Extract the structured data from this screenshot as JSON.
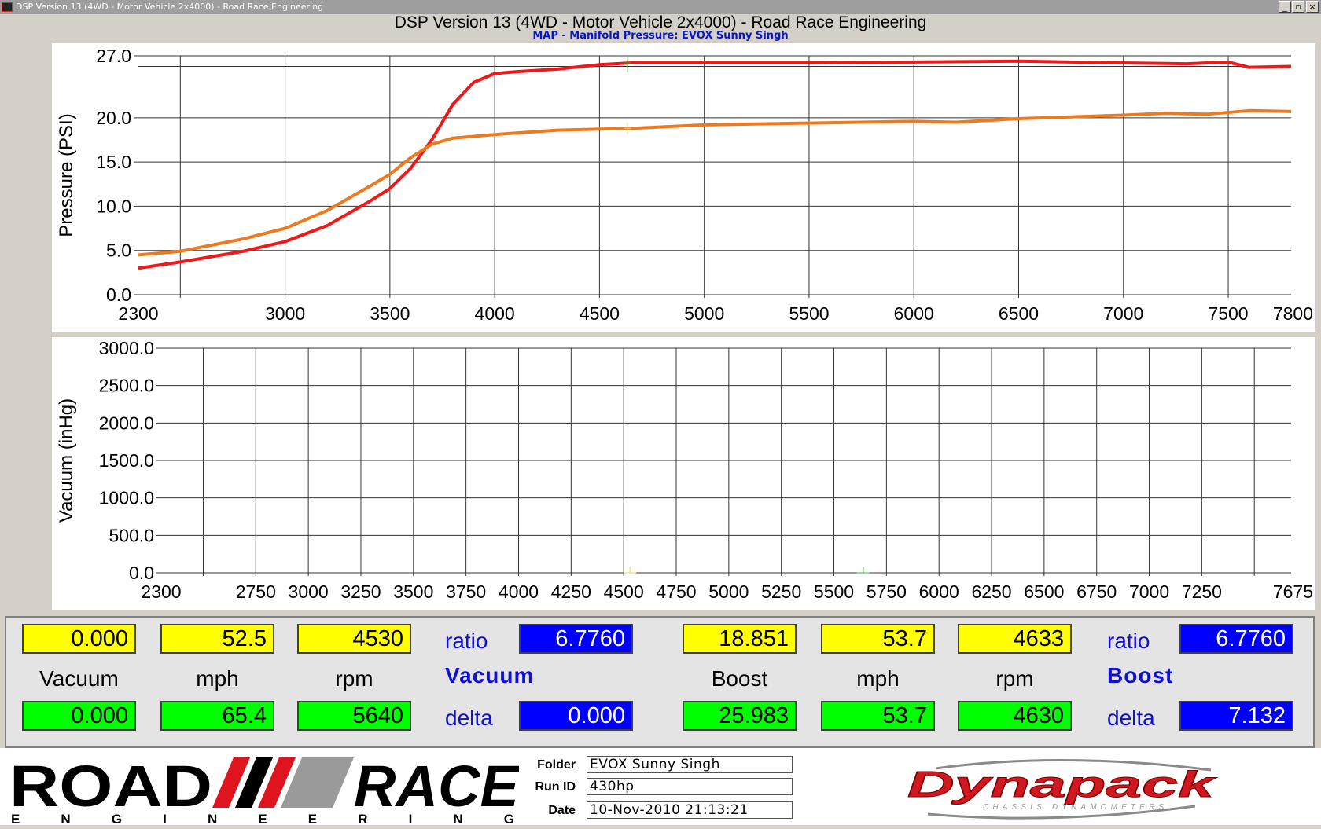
{
  "window": {
    "title": "DSP Version 13 (4WD - Motor Vehicle 2x4000) - Road Race Engineering",
    "min_glyph": "_",
    "max_glyph": "▫",
    "close_glyph": "×"
  },
  "header": {
    "title": "DSP Version 13 (4WD - Motor Vehicle 2x4000) - Road Race Engineering",
    "subtitle": "MAP - Manifold Pressure: EVOX Sunny Singh"
  },
  "chart_data": [
    {
      "type": "line",
      "ylabel": "Pressure (PSI)",
      "xlim": [
        2300,
        7800
      ],
      "ylim": [
        0,
        27
      ],
      "x_ticks": [
        "2300",
        "3000",
        "3500",
        "4000",
        "4500",
        "5000",
        "5500",
        "6000",
        "6500",
        "7000",
        "7500",
        "7800"
      ],
      "y_ticks": [
        "0.0",
        "5.0",
        "10.0",
        "15.0",
        "20.0",
        "27.0"
      ],
      "grid": true,
      "colors": [
        "#f01818",
        "#ee7a20"
      ],
      "series": [
        {
          "x": [
            2300,
            2500,
            2800,
            3000,
            3200,
            3400,
            3500,
            3600,
            3700,
            3800,
            3900,
            4000,
            4100,
            4300,
            4500,
            4650,
            5000,
            5500,
            6000,
            6500,
            7000,
            7300,
            7500,
            7600,
            7800
          ],
          "y": [
            3.0,
            3.7,
            4.9,
            6.0,
            7.8,
            10.5,
            12.0,
            14.3,
            17.5,
            21.5,
            24.0,
            25.0,
            25.2,
            25.5,
            26.0,
            26.2,
            26.2,
            26.2,
            26.3,
            26.4,
            26.2,
            26.1,
            26.3,
            25.7,
            25.8
          ]
        },
        {
          "x": [
            2300,
            2500,
            2800,
            3000,
            3200,
            3400,
            3500,
            3600,
            3700,
            3800,
            4000,
            4300,
            4650,
            5000,
            5500,
            6000,
            6200,
            6500,
            7000,
            7200,
            7400,
            7500,
            7600,
            7800
          ],
          "y": [
            4.5,
            4.9,
            6.3,
            7.5,
            9.5,
            12.2,
            13.6,
            15.5,
            17.0,
            17.7,
            18.1,
            18.6,
            18.8,
            19.2,
            19.4,
            19.6,
            19.5,
            19.9,
            20.3,
            20.5,
            20.4,
            20.6,
            20.8,
            20.7
          ]
        }
      ],
      "cursor_rpm": 4633
    },
    {
      "type": "line",
      "ylabel": "Vacuum (inHg)",
      "xlim": [
        2300,
        7675
      ],
      "ylim": [
        0,
        3000
      ],
      "x_ticks": [
        "2300",
        "2750",
        "3000",
        "3250",
        "3500",
        "3750",
        "4000",
        "4250",
        "4500",
        "4750",
        "5000",
        "5250",
        "5500",
        "5750",
        "6000",
        "6250",
        "6500",
        "6750",
        "7000",
        "7250",
        "7675"
      ],
      "y_ticks": [
        "0.0",
        "500.0",
        "1000.0",
        "1500.0",
        "2000.0",
        "2500.0",
        "3000.0"
      ],
      "grid": true,
      "series": [],
      "markers": [
        {
          "x": 4530,
          "y": 0,
          "color": "#e6dc50"
        },
        {
          "x": 5640,
          "y": 0,
          "color": "#30c030"
        }
      ]
    }
  ],
  "readouts": {
    "left": {
      "vacuum_top": "0.000",
      "mph_top": "52.5",
      "rpm_top": "4530",
      "ratio_label": "ratio",
      "ratio_value": "6.7760",
      "vacuum_label": "Vacuum",
      "mph_label": "mph",
      "rpm_label": "rpm",
      "section_label": "Vacuum",
      "vacuum_bottom": "0.000",
      "mph_bottom": "65.4",
      "rpm_bottom": "5640",
      "delta_label": "delta",
      "delta_value": "0.000"
    },
    "right": {
      "boost_top": "18.851",
      "mph_top": "53.7",
      "rpm_top": "4633",
      "ratio_label": "ratio",
      "ratio_value": "6.7760",
      "boost_label": "Boost",
      "mph_label": "mph",
      "rpm_label": "rpm",
      "section_label": "Boost",
      "boost_bottom": "25.983",
      "mph_bottom": "53.7",
      "rpm_bottom": "4630",
      "delta_label": "delta",
      "delta_value": "7.132"
    }
  },
  "footer": {
    "logo_road": "ROAD",
    "logo_race": "RACE",
    "logo_engineering": "E N G I N E E R I N G",
    "folder_label": "Folder",
    "folder_value": "EVOX Sunny Singh",
    "runid_label": "Run ID",
    "runid_value": "430hp",
    "date_label": "Date",
    "date_value": "10-Nov-2010 21:13:21",
    "brand": "Dynapack",
    "brand_sub": "CHASSIS DYNAMOMETERS",
    "logo_colors": {
      "red": "#e0141e",
      "black": "#000000",
      "gray": "#9a9a9a"
    }
  }
}
